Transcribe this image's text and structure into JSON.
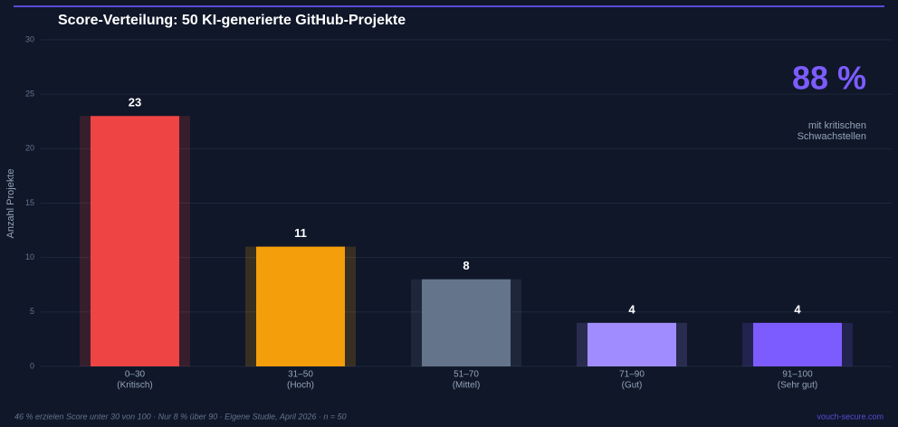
{
  "chart_data": {
    "type": "bar",
    "title": "Score-Verteilung: 50 KI-generierte GitHub-Projekte",
    "y_label": "Anzahl Projekte",
    "categories": [
      "0–30",
      "31–50",
      "51–70",
      "71–90",
      "91–100"
    ],
    "category_sublabels": [
      "(Kritisch)",
      "(Hoch)",
      "(Mittel)",
      "(Gut)",
      "(Sehr gut)"
    ],
    "values": [
      23,
      11,
      8,
      4,
      4
    ],
    "colors": [
      "#ef4444",
      "#f59e0b",
      "#64748b",
      "#a08cff",
      "#7c5cff"
    ],
    "ylim": [
      0,
      30
    ],
    "yticks": [
      0,
      5,
      10,
      15,
      20,
      25,
      30
    ],
    "grid": true,
    "highlight": {
      "value": "88 %",
      "lines": [
        "mit kritischen",
        "Schwachstellen"
      ]
    },
    "footnote": "46 % erzielen Score unter 30 von 100 · Nur 8 % über 90 · Eigene Studie, April 2026 · n = 50",
    "source": "vouch-secure.com"
  }
}
